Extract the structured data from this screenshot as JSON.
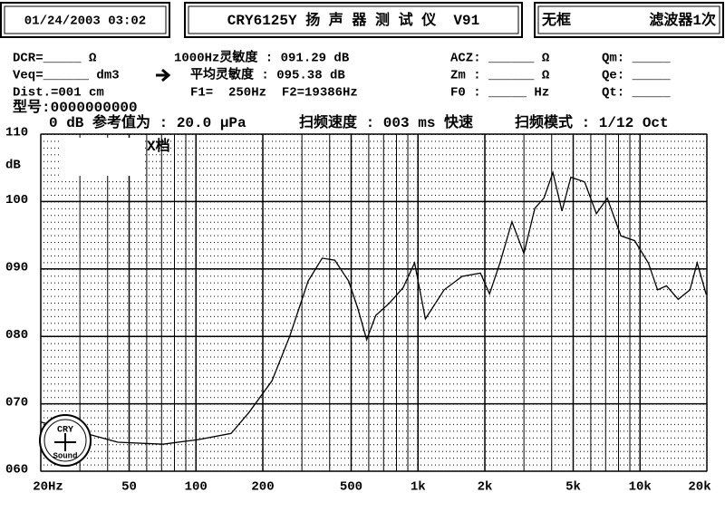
{
  "header": {
    "datetime": "01/24/2003 03:02",
    "title": "CRY6125Y 扬 声 器 测 试 仪  V91",
    "frame": "无框",
    "filter": "滤波器1次"
  },
  "info": {
    "dcr": "DCR=_____ Ω",
    "veq": "Veq=______ dm3",
    "dist": "Dist.=001 cm",
    "model": "型号:0000000000",
    "sens1k": "1000Hz灵敏度 : 091.29 dB",
    "sens_avg": "平均灵敏度 : 095.38 dB",
    "f1f2": "F1=  250Hz  F2=19386Hz",
    "acz": "ACZ: ______ Ω",
    "zm": "Zm : ______ Ω",
    "f0": "F0 : _____ Hz",
    "qm": "Qm: _____",
    "qe": "Qe: _____",
    "qt": "Qt: _____",
    "ref": "0 dB 参考值为 : 20.0 μPa",
    "speed": "扫频速度 : 003 ms 快速",
    "mode": "扫频模式 : 1/12 Oct"
  },
  "logo": {
    "top": "CRY",
    "bottom": "Sound"
  },
  "chart_data": {
    "type": "line",
    "ylabel": "dB",
    "annotation": "X档",
    "color": "#000000",
    "xscale": "log",
    "grid": true,
    "xlim": [
      20,
      20000
    ],
    "ylim": [
      60,
      110
    ],
    "xticks": [
      {
        "value": 20,
        "label": "20Hz"
      },
      50,
      100,
      200,
      500,
      {
        "value": 1000,
        "label": "1k"
      },
      {
        "value": 2000,
        "label": "2k"
      },
      {
        "value": 5000,
        "label": "5k"
      },
      {
        "value": 10000,
        "label": "10k"
      },
      {
        "value": 20000,
        "label": "20k"
      }
    ],
    "xminor": [
      30,
      40,
      60,
      70,
      80,
      90,
      300,
      400,
      600,
      700,
      800,
      900,
      3000,
      4000,
      6000,
      7000,
      8000,
      9000
    ],
    "yticks": [
      {
        "value": 60,
        "label": "060"
      },
      {
        "value": 70,
        "label": "070"
      },
      {
        "value": 80,
        "label": "080"
      },
      {
        "value": 90,
        "label": "090"
      },
      100,
      110
    ],
    "x": [
      20,
      33.5,
      44.5,
      71,
      103,
      144,
      173,
      220,
      265,
      320,
      370,
      422,
      487,
      535,
      587,
      645,
      742,
      856,
      965,
      1080,
      1310,
      1580,
      1910,
      2100,
      2340,
      2650,
      3000,
      3360,
      3690,
      4050,
      4450,
      4880,
      5630,
      6360,
      7120,
      8200,
      9460,
      10900,
      12000,
      13160,
      14860,
      16770,
      18080,
      19860
    ],
    "values": [
      67.3,
      65.4,
      64.3,
      64,
      64.7,
      65.6,
      68.7,
      73.4,
      80.1,
      88.2,
      91.6,
      91.3,
      88.2,
      84.2,
      79.5,
      83.1,
      84.9,
      87.2,
      90.9,
      82.6,
      86.9,
      88.9,
      89.4,
      86.3,
      90.9,
      97,
      92.3,
      99,
      100.5,
      104.3,
      98.6,
      103.6,
      102.9,
      98.2,
      100.5,
      94.9,
      94.2,
      90.9,
      86.9,
      87.5,
      85.5,
      86.9,
      90.9,
      86.2
    ]
  }
}
